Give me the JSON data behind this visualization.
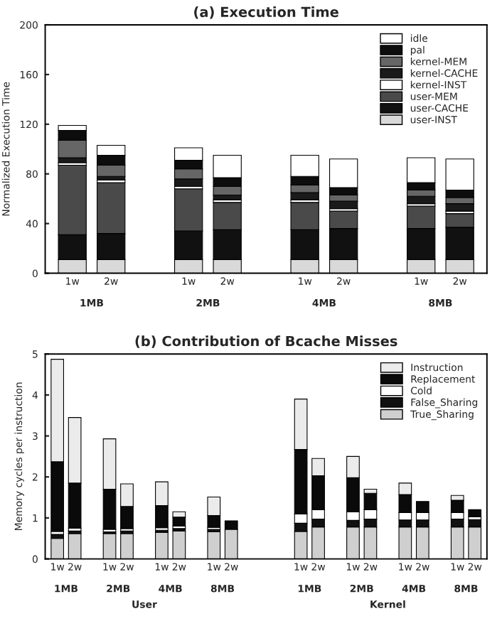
{
  "chart_data": [
    {
      "type": "bar",
      "title": "(a) Execution Time",
      "ylabel": "Normalized Execution Time",
      "stacked": true,
      "legend": "top right",
      "grid": false,
      "categories": [
        "1w",
        "2w",
        null,
        "1w",
        "2w",
        null,
        "1w",
        "2w",
        null,
        "1w",
        "2w"
      ],
      "ylim": [
        0,
        200
      ],
      "yticks": [
        0,
        40,
        80,
        120,
        160,
        200
      ],
      "annotations": [
        "1MB",
        "2MB",
        "4MB",
        "8MB"
      ],
      "series": [
        {
          "name": "user-INST",
          "color": "#d9d9d9",
          "values": [
            11,
            11,
            null,
            11,
            11,
            null,
            11,
            11,
            null,
            11,
            11
          ]
        },
        {
          "name": "user-CACHE",
          "color": "#111111",
          "values": [
            20,
            21,
            null,
            23,
            24,
            null,
            24,
            25,
            null,
            25,
            26
          ]
        },
        {
          "name": "user-MEM",
          "color": "#4a4a4a",
          "values": [
            56,
            41,
            null,
            34,
            22,
            null,
            22,
            14,
            null,
            18,
            11
          ]
        },
        {
          "name": "kernel-INST",
          "color": "#ffffff",
          "values": [
            2,
            2,
            null,
            2,
            2,
            null,
            2,
            2,
            null,
            2,
            2
          ]
        },
        {
          "name": "kernel-CACHE",
          "color": "#1a1a1a",
          "values": [
            4,
            3,
            null,
            6,
            4,
            null,
            6,
            6,
            null,
            6,
            6
          ]
        },
        {
          "name": "kernel-MEM",
          "color": "#666666",
          "values": [
            14,
            9,
            null,
            8,
            7,
            null,
            6,
            5,
            null,
            5,
            5
          ]
        },
        {
          "name": "pal",
          "color": "#0d0d0d",
          "values": [
            8,
            8,
            null,
            7,
            7,
            null,
            7,
            6,
            null,
            6,
            6
          ]
        },
        {
          "name": "idle",
          "color": "#ffffff",
          "values": [
            4,
            8,
            null,
            10,
            18,
            null,
            17,
            23,
            null,
            20,
            25
          ]
        }
      ]
    },
    {
      "type": "bar",
      "title": "(b) Contribution of Bcache Misses",
      "ylabel": "Memory cycles per instruction",
      "stacked": true,
      "legend": "top right",
      "grid": false,
      "categories": [
        "1w",
        "2w",
        null,
        "1w",
        "2w",
        null,
        "1w",
        "2w",
        null,
        "1w",
        "2w",
        null,
        null,
        null,
        "1w",
        "2w",
        null,
        "1w",
        "2w",
        null,
        "1w",
        "2w",
        null,
        "1w",
        "2w"
      ],
      "ylim": [
        0,
        5
      ],
      "yticks": [
        0,
        1,
        2,
        3,
        4,
        5
      ],
      "annotations": [
        "1MB",
        "2MB",
        "4MB",
        "8MB",
        "1MB",
        "2MB",
        "4MB",
        "8MB",
        "User",
        "Kernel"
      ],
      "series": [
        {
          "name": "True_Sharing",
          "color": "#cfcfcf",
          "values": [
            0.5,
            0.62,
            null,
            0.62,
            0.62,
            null,
            0.65,
            0.68,
            null,
            0.66,
            0.72,
            null,
            null,
            null,
            0.67,
            0.78,
            null,
            0.78,
            0.78,
            null,
            0.78,
            0.78,
            null,
            0.78,
            0.78
          ]
        },
        {
          "name": "False_Sharing",
          "color": "#111111",
          "values": [
            0.1,
            0.06,
            null,
            0.04,
            0.06,
            null,
            0.05,
            0.06,
            null,
            0.06,
            null,
            null,
            null,
            null,
            0.2,
            0.19,
            null,
            0.16,
            0.19,
            null,
            0.17,
            0.17,
            null,
            0.19,
            0.18
          ]
        },
        {
          "name": "Cold",
          "color": "#ffffff",
          "values": [
            0.07,
            0.07,
            null,
            0.06,
            0.06,
            null,
            0.06,
            0.06,
            null,
            0.05,
            null,
            null,
            null,
            null,
            0.23,
            0.23,
            null,
            0.21,
            0.23,
            null,
            0.18,
            0.18,
            null,
            0.16,
            0.07
          ]
        },
        {
          "name": "Replacement",
          "color": "#0a0a0a",
          "values": [
            1.7,
            1.1,
            null,
            0.98,
            0.54,
            null,
            0.54,
            0.22,
            null,
            0.29,
            0.21,
            null,
            null,
            null,
            1.57,
            0.83,
            null,
            0.83,
            0.4,
            null,
            0.44,
            0.27,
            null,
            0.3,
            0.17
          ]
        },
        {
          "name": "Instruction",
          "color": "#ebebeb",
          "values": [
            2.5,
            1.6,
            null,
            1.23,
            0.55,
            null,
            0.58,
            0.13,
            null,
            0.45,
            null,
            null,
            null,
            null,
            1.23,
            0.42,
            null,
            0.52,
            0.1,
            null,
            0.28,
            null,
            null,
            0.12,
            null
          ]
        }
      ]
    }
  ]
}
